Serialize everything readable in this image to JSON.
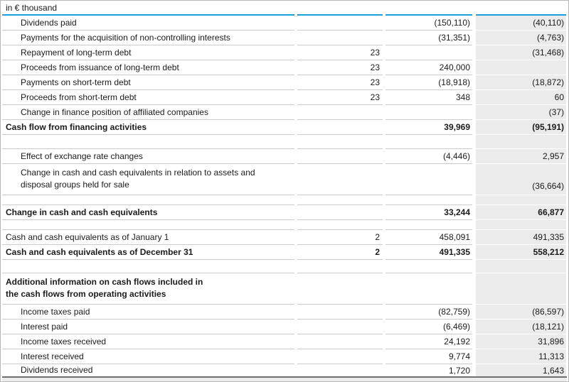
{
  "document": {
    "type_hint": "consolidated-cash-flow-statement-excerpt"
  },
  "colors": {
    "accent_blue": "#1b9dde",
    "prior_column_bg": "#ebebeb",
    "row_separator": "#cbcbcb",
    "table_end_line": "#6f6f6f"
  },
  "table": {
    "unit_caption": "in € thousand",
    "rows": [
      {
        "type": "data",
        "label": "Dividends paid",
        "note": "",
        "current": "(150,110)",
        "prior": "(40,110)",
        "indent": true
      },
      {
        "type": "data",
        "label": "Payments for the acquisition of non-controlling interests",
        "note": "",
        "current": "(31,351)",
        "prior": "(4,763)",
        "indent": true
      },
      {
        "type": "data",
        "label": "Repayment of long-term debt",
        "note": "23",
        "current": "",
        "prior": "(31,468)",
        "indent": true
      },
      {
        "type": "data",
        "label": "Proceeds from issuance of long-term debt",
        "note": "23",
        "current": "240,000",
        "prior": "",
        "indent": true
      },
      {
        "type": "data",
        "label": "Payments on short-term debt",
        "note": "23",
        "current": "(18,918)",
        "prior": "(18,872)",
        "indent": true
      },
      {
        "type": "data",
        "label": "Proceeds from short-term debt",
        "note": "23",
        "current": "348",
        "prior": "60",
        "indent": true
      },
      {
        "type": "data",
        "label": "Change in finance position of affiliated companies",
        "note": "",
        "current": "",
        "prior": "(37)",
        "indent": true
      },
      {
        "type": "data",
        "label": "Cash flow from financing activities",
        "note": "",
        "current": "39,969",
        "prior": "(95,191)",
        "bold": true
      },
      {
        "type": "spacer",
        "height": 20
      },
      {
        "type": "data",
        "label": "Effect of exchange rate changes",
        "note": "",
        "current": "(4,446)",
        "prior": "2,957",
        "indent": true
      },
      {
        "type": "data",
        "label": "Change in cash and cash equivalents in relation to assets and\ndisposal groups held for sale",
        "note": "",
        "current": "",
        "prior": "(36,664)",
        "indent": true,
        "tall": true,
        "height": 44
      },
      {
        "type": "spacer",
        "height": 14
      },
      {
        "type": "data",
        "label": "Change in cash and cash equivalents",
        "note": "",
        "current": "33,244",
        "prior": "66,877",
        "bold": true
      },
      {
        "type": "spacer",
        "height": 14
      },
      {
        "type": "data",
        "label": "Cash and cash equivalents as of January 1",
        "note": "2",
        "current": "458,091",
        "prior": "491,335"
      },
      {
        "type": "data",
        "label": "Cash and cash equivalents as of December 31",
        "note": "2",
        "current": "491,335",
        "prior": "558,212",
        "bold": true
      },
      {
        "type": "spacer",
        "height": 19
      },
      {
        "type": "data",
        "label": "Additional information on cash flows included in\nthe cash flows from operating activities",
        "note": "",
        "current": "",
        "prior": "",
        "bold": true,
        "tall": true,
        "height": 44
      },
      {
        "type": "data",
        "label": "Income taxes paid",
        "note": "",
        "current": "(82,759)",
        "prior": "(86,597)",
        "indent": true
      },
      {
        "type": "data",
        "label": "Interest paid",
        "note": "",
        "current": "(6,469)",
        "prior": "(18,121)",
        "indent": true
      },
      {
        "type": "data",
        "label": "Income taxes received",
        "note": "",
        "current": "24,192",
        "prior": "31,896",
        "indent": true
      },
      {
        "type": "data",
        "label": "Interest received",
        "note": "",
        "current": "9,774",
        "prior": "11,313",
        "indent": true
      },
      {
        "type": "data",
        "label": "Dividends received",
        "note": "",
        "current": "1,720",
        "prior": "1,643",
        "indent": true,
        "last": true,
        "height": 17
      }
    ]
  }
}
